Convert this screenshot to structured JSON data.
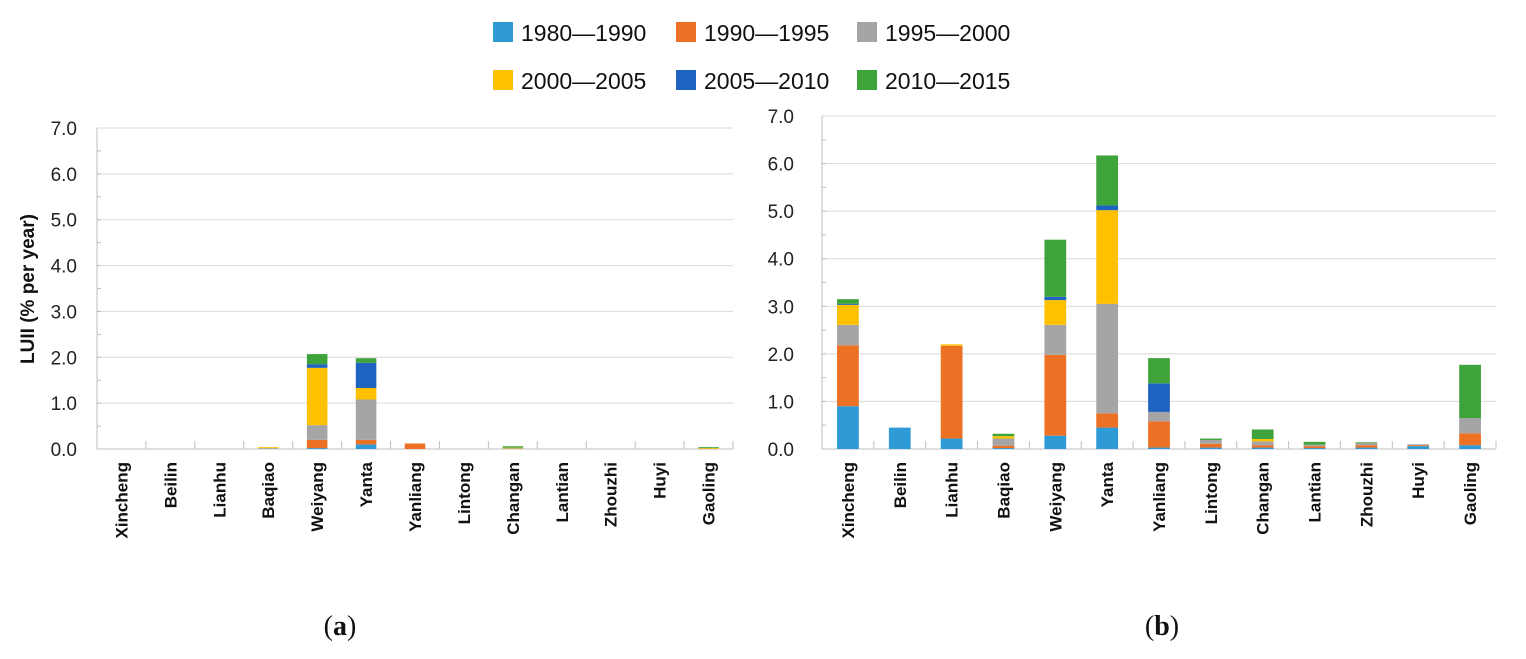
{
  "chart_data": [
    {
      "type": "bar",
      "stacked": true,
      "panel_label": "a",
      "ylabel": "LUII (% per year)",
      "ylim": [
        0,
        7
      ],
      "yticks": [
        "0.0",
        "1.0",
        "2.0",
        "3.0",
        "4.0",
        "5.0",
        "6.0",
        "7.0"
      ],
      "categories": [
        "Xincheng",
        "Beilin",
        "Lianhu",
        "Baqiao",
        "Weiyang",
        "Yanta",
        "Yanliang",
        "Lintong",
        "Changan",
        "Lantian",
        "Zhouzhi",
        "Huyi",
        "Gaoling"
      ],
      "series": [
        {
          "name": "1980—1990",
          "values": [
            0,
            0,
            0,
            0,
            0.02,
            0.1,
            0,
            0,
            0,
            0,
            0,
            0,
            0
          ]
        },
        {
          "name": "1990—1995",
          "values": [
            0,
            0,
            0,
            0,
            0.18,
            0.1,
            0.12,
            0,
            0,
            0,
            0,
            0,
            0
          ]
        },
        {
          "name": "1995—2000",
          "values": [
            0,
            0,
            0,
            0.02,
            0.32,
            0.88,
            0,
            0,
            0.02,
            0,
            0,
            0,
            0.01
          ]
        },
        {
          "name": "2000—2005",
          "values": [
            0,
            0,
            0,
            0.02,
            1.25,
            0.25,
            0,
            0,
            0.01,
            0,
            0,
            0,
            0.01
          ]
        },
        {
          "name": "2005—2010",
          "values": [
            0,
            0,
            0,
            0,
            0.08,
            0.55,
            0,
            0,
            0,
            0,
            0,
            0,
            0
          ]
        },
        {
          "name": "2010—2015",
          "values": [
            0,
            0,
            0,
            0,
            0.22,
            0.1,
            0,
            0,
            0.03,
            0,
            0,
            0,
            0.02
          ]
        }
      ]
    },
    {
      "type": "bar",
      "stacked": true,
      "panel_label": "b",
      "ylabel": "",
      "ylim": [
        0,
        7
      ],
      "yticks": [
        "0.0",
        "1.0",
        "2.0",
        "3.0",
        "4.0",
        "5.0",
        "6.0",
        "7.0"
      ],
      "categories": [
        "Xincheng",
        "Beilin",
        "Lianhu",
        "Baqiao",
        "Weiyang",
        "Yanta",
        "Yanliang",
        "Lintong",
        "Changan",
        "Lantian",
        "Zhouzhi",
        "Huyi",
        "Gaoling"
      ],
      "series": [
        {
          "name": "1980—1990",
          "values": [
            0.9,
            0.45,
            0.22,
            0.02,
            0.28,
            0.45,
            0.03,
            0.03,
            0.03,
            0.02,
            0.03,
            0.06,
            0.08
          ]
        },
        {
          "name": "1990—1995",
          "values": [
            1.28,
            0,
            1.95,
            0.05,
            1.7,
            0.3,
            0.55,
            0.08,
            0.05,
            0.04,
            0.05,
            0.02,
            0.25
          ]
        },
        {
          "name": "1995—2000",
          "values": [
            0.43,
            0,
            0,
            0.15,
            0.63,
            2.3,
            0.2,
            0.08,
            0.08,
            0.03,
            0.05,
            0.02,
            0.32
          ]
        },
        {
          "name": "2000—2005",
          "values": [
            0.42,
            0,
            0.03,
            0.05,
            0.52,
            1.97,
            0,
            0,
            0.05,
            0,
            0,
            0,
            0
          ]
        },
        {
          "name": "2005—2010",
          "values": [
            0.02,
            0,
            0,
            0,
            0.07,
            0.1,
            0.6,
            0,
            0,
            0,
            0,
            0,
            0
          ]
        },
        {
          "name": "2010—2015",
          "values": [
            0.1,
            0,
            0,
            0.05,
            1.2,
            1.05,
            0.53,
            0.03,
            0.2,
            0.06,
            0.01,
            0,
            1.12
          ]
        }
      ]
    }
  ],
  "legend": [
    {
      "name": "1980—1990",
      "color": "#2e9bd6"
    },
    {
      "name": "1990—1995",
      "color": "#ed7125"
    },
    {
      "name": "1995—2000",
      "color": "#a5a5a5"
    },
    {
      "name": "2000—2005",
      "color": "#ffc000"
    },
    {
      "name": "2005—2010",
      "color": "#1f63c0"
    },
    {
      "name": "2010—2015",
      "color": "#3fa33b"
    }
  ],
  "panel_labels": {
    "a": "a",
    "b": "b"
  }
}
